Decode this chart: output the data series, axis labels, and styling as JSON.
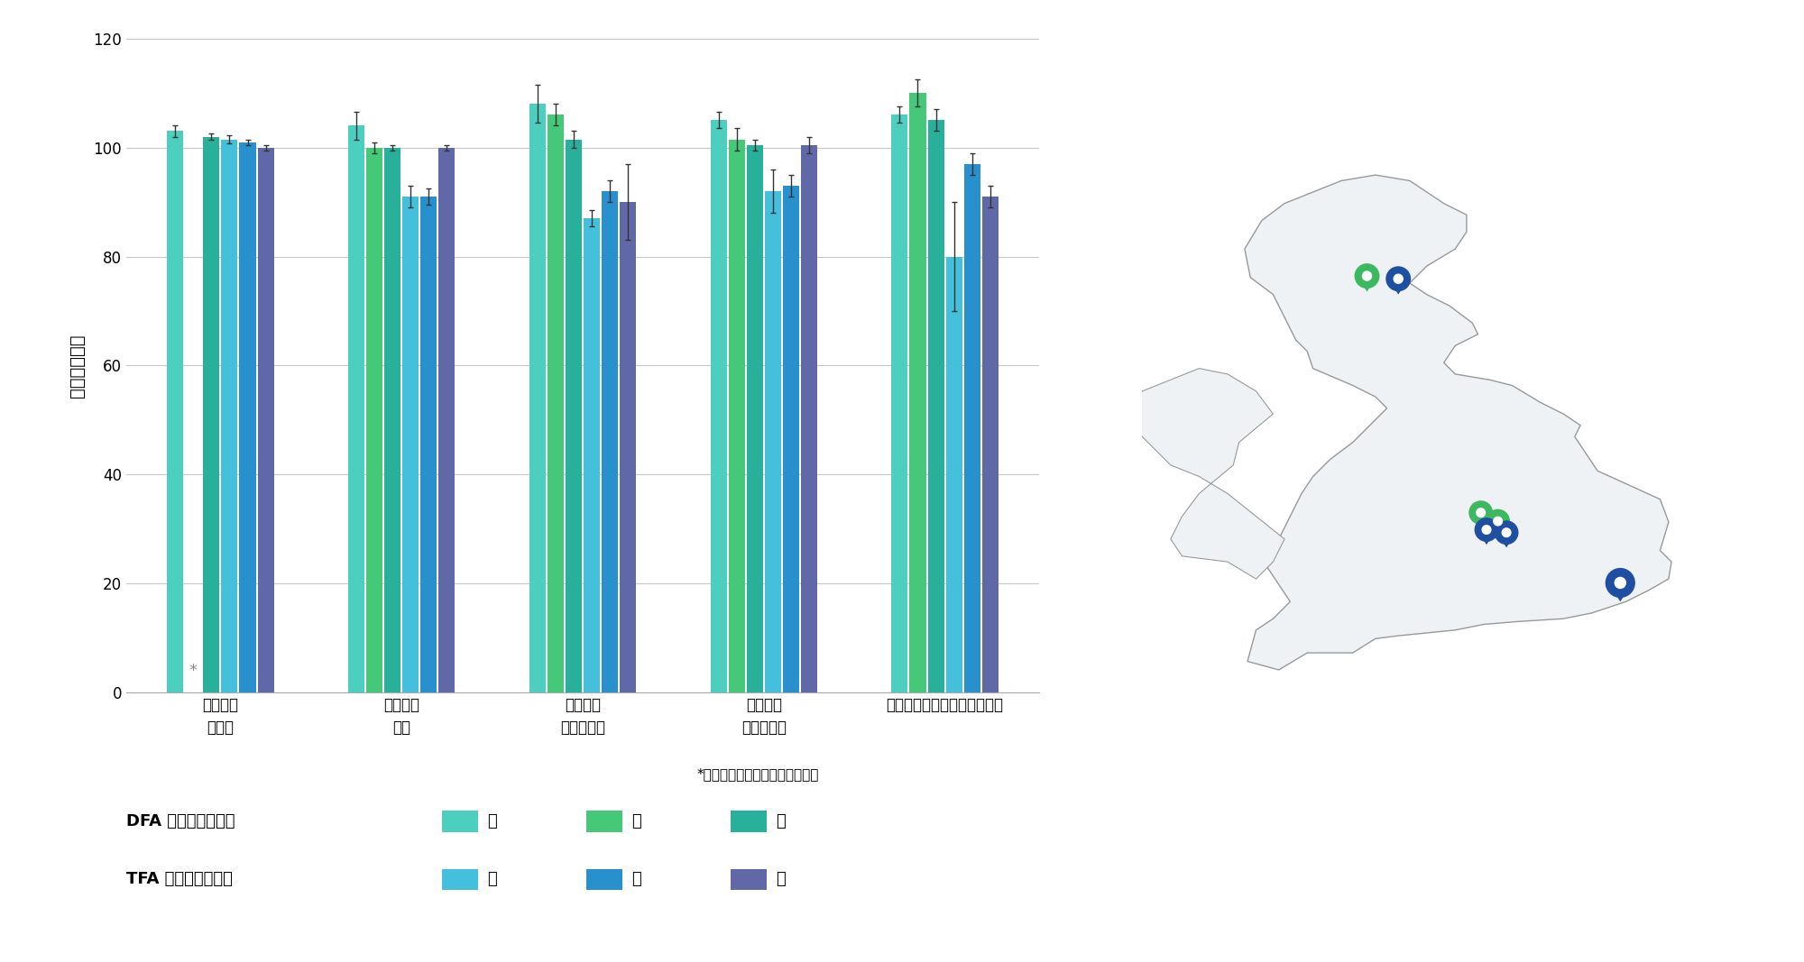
{
  "ylabel": "回収率（％）",
  "ylim": [
    0,
    120
  ],
  "yticks": [
    0,
    20,
    40,
    60,
    80,
    100,
    120
  ],
  "bar_width": 0.1,
  "colors": {
    "DFA_low": "#4DCFC0",
    "DFA_mid": "#45C878",
    "DFA_high": "#28B09A",
    "TFA_low": "#45C0DC",
    "TFA_mid": "#2890CC",
    "TFA_high": "#6068A8"
  },
  "data": [
    {
      "label": "地表水：\n谯水池",
      "DFA_low": {
        "val": 103.0,
        "err": 1.0
      },
      "DFA_mid": {
        "val": 0,
        "err": 0,
        "missing": true
      },
      "DFA_high": {
        "val": 102.0,
        "err": 0.5
      },
      "TFA_low": {
        "val": 101.5,
        "err": 0.8
      },
      "TFA_mid": {
        "val": 101.0,
        "err": 0.5
      },
      "TFA_high": {
        "val": 100.0,
        "err": 0.5
      }
    },
    {
      "label": "地表水：\n河川",
      "DFA_low": {
        "val": 104.0,
        "err": 2.5
      },
      "DFA_mid": {
        "val": 100.0,
        "err": 1.0
      },
      "DFA_high": {
        "val": 100.0,
        "err": 0.5
      },
      "TFA_low": {
        "val": 91.0,
        "err": 2.0
      },
      "TFA_mid": {
        "val": 91.0,
        "err": 1.5
      },
      "TFA_high": {
        "val": 100.0,
        "err": 0.5
      }
    },
    {
      "label": "飲料水：\n硬水水道水",
      "DFA_low": {
        "val": 108.0,
        "err": 3.5
      },
      "DFA_mid": {
        "val": 106.0,
        "err": 2.0
      },
      "DFA_high": {
        "val": 101.5,
        "err": 1.5
      },
      "TFA_low": {
        "val": 87.0,
        "err": 1.5
      },
      "TFA_mid": {
        "val": 92.0,
        "err": 2.0
      },
      "TFA_high": {
        "val": 90.0,
        "err": 7.0
      }
    },
    {
      "label": "飲料水：\n軟水水道水",
      "DFA_low": {
        "val": 105.0,
        "err": 1.5
      },
      "DFA_mid": {
        "val": 101.5,
        "err": 2.0
      },
      "DFA_high": {
        "val": 100.5,
        "err": 1.0
      },
      "TFA_low": {
        "val": 92.0,
        "err": 4.0
      },
      "TFA_mid": {
        "val": 93.0,
        "err": 2.0
      },
      "TFA_high": {
        "val": 100.5,
        "err": 1.5
      }
    },
    {
      "label": "飲料水：ミネラルウォーター",
      "DFA_low": {
        "val": 106.0,
        "err": 1.5
      },
      "DFA_mid": {
        "val": 110.0,
        "err": 2.5
      },
      "DFA_high": {
        "val": 105.0,
        "err": 2.0
      },
      "TFA_low": {
        "val": 80.0,
        "err": 10.0
      },
      "TFA_mid": {
        "val": 97.0,
        "err": 2.0
      },
      "TFA_high": {
        "val": 91.0,
        "err": 2.0
      }
    }
  ],
  "asterisk_note": "*前処理ミスのため削除しました",
  "legend_DFA_label": "DFA の回収率レベル",
  "legend_TFA_label": "TFA の回収率レベル",
  "legend_low": "低",
  "legend_mid": "中",
  "legend_high": "高",
  "grid_color": "#C8C8C8",
  "axis_fontsize": 14,
  "tick_fontsize": 12,
  "legend_fontsize": 13
}
